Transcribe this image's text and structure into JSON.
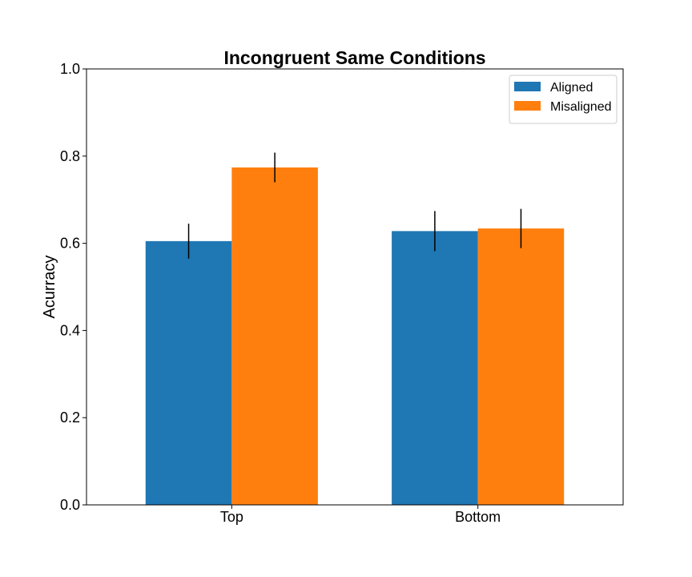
{
  "chart_data": {
    "type": "bar",
    "title": "Incongruent Same Conditions",
    "xlabel": "",
    "ylabel": "Acurracy",
    "ylim": [
      0,
      1.0
    ],
    "yticks": [
      0.0,
      0.2,
      0.4,
      0.6,
      0.8,
      1.0
    ],
    "ytick_labels": [
      "0.0",
      "0.2",
      "0.4",
      "0.6",
      "0.8",
      "1.0"
    ],
    "categories": [
      "Top",
      "Bottom"
    ],
    "series": [
      {
        "name": "Aligned",
        "color": "#1f77b4",
        "values": [
          0.605,
          0.628
        ],
        "errors": [
          0.04,
          0.046
        ]
      },
      {
        "name": "Misaligned",
        "color": "#ff7f0e",
        "values": [
          0.774,
          0.634
        ],
        "errors": [
          0.034,
          0.045
        ]
      }
    ],
    "legend": "top-right",
    "grid": false
  }
}
